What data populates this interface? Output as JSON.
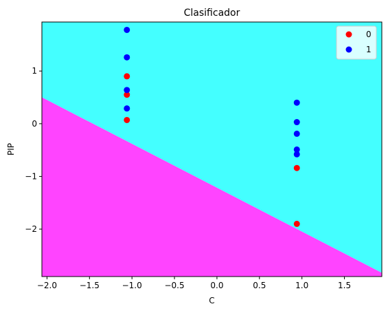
{
  "chart_data": {
    "type": "scatter",
    "title": "Clasificador",
    "xlabel": "C",
    "ylabel": "PIP",
    "xlim": [
      -2.06,
      1.94
    ],
    "ylim": [
      -2.9,
      1.93
    ],
    "xticks": [
      -2.0,
      -1.5,
      -1.0,
      -0.5,
      0.0,
      0.5,
      1.0,
      1.5
    ],
    "xtick_labels": [
      "−2.0",
      "−1.5",
      "−1.0",
      "−0.5",
      "0.0",
      "0.5",
      "1.0",
      "1.5"
    ],
    "yticks": [
      -2,
      -1,
      0,
      1
    ],
    "ytick_labels": [
      "−2",
      "−1",
      "0",
      "1"
    ],
    "decision_boundary": {
      "x": [
        -2.06,
        1.94
      ],
      "y": [
        0.5,
        -2.83
      ],
      "region_above_color": "#44ffff",
      "region_below_color": "#ff44ff"
    },
    "legend_position": "top-right",
    "series": [
      {
        "name": "0",
        "color": "#ff0000",
        "points": [
          {
            "x": -1.06,
            "y": 0.9
          },
          {
            "x": -1.06,
            "y": 0.55
          },
          {
            "x": -1.06,
            "y": 0.07
          },
          {
            "x": 0.94,
            "y": -0.84
          },
          {
            "x": 0.94,
            "y": -1.9
          }
        ]
      },
      {
        "name": "1",
        "color": "#0000ff",
        "points": [
          {
            "x": -1.06,
            "y": 1.78
          },
          {
            "x": -1.06,
            "y": 1.26
          },
          {
            "x": -1.06,
            "y": 0.64
          },
          {
            "x": -1.06,
            "y": 0.29
          },
          {
            "x": 0.94,
            "y": 0.4
          },
          {
            "x": 0.94,
            "y": 0.03
          },
          {
            "x": 0.94,
            "y": -0.19
          },
          {
            "x": 0.94,
            "y": -0.49
          },
          {
            "x": 0.94,
            "y": -0.58
          }
        ]
      }
    ]
  }
}
